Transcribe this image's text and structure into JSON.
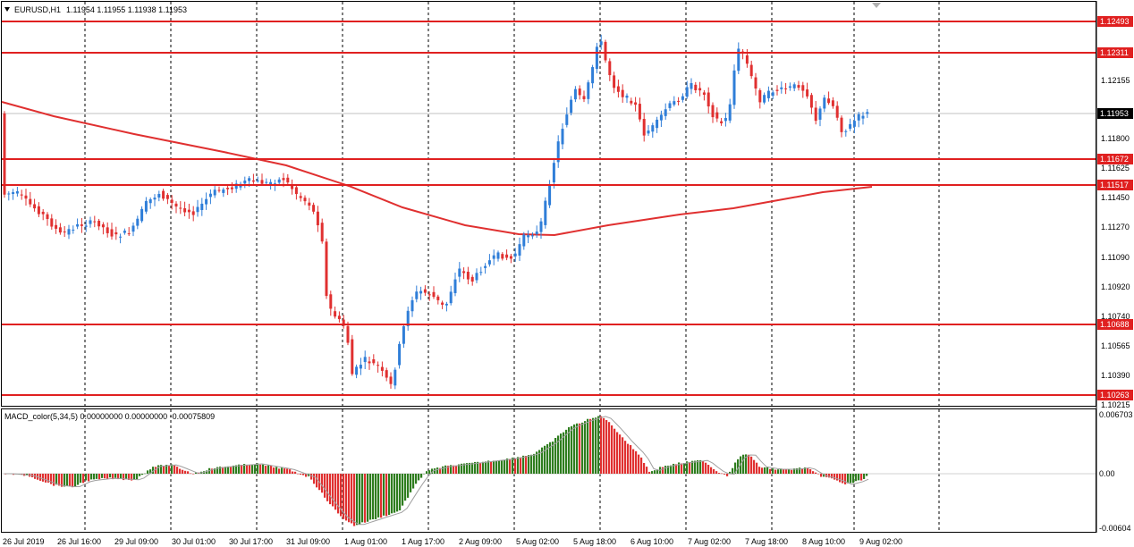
{
  "main_panel": {
    "symbol": "EURUSD,H1",
    "ohlc": "1.11954 1.11955 1.11938 1.11953",
    "price_ticks": [
      "1.12155",
      "1.11800",
      "1.11625",
      "1.11450",
      "1.11270",
      "1.11090",
      "1.10920",
      "1.10740",
      "1.10565",
      "1.10390",
      "1.10215"
    ],
    "current_price": "1.11953",
    "levels": [
      "1.12493",
      "1.12311",
      "1.11672",
      "1.11517",
      "1.10688",
      "1.10263"
    ]
  },
  "macd_panel": {
    "title": "MACD_color(5,34,5) 0.00000000 0.00000000 -0.00075809",
    "ticks": [
      "0.006703",
      "0.00",
      "-0.00604"
    ]
  },
  "time_axis": [
    "26 Jul 2019",
    "26 Jul 16:00",
    "29 Jul 09:00",
    "30 Jul 01:00",
    "30 Jul 17:00",
    "31 Jul 09:00",
    "1 Aug 01:00",
    "1 Aug 17:00",
    "2 Aug 09:00",
    "5 Aug 02:00",
    "5 Aug 18:00",
    "6 Aug 10:00",
    "7 Aug 02:00",
    "7 Aug 18:00",
    "8 Aug 10:00",
    "9 Aug 02:00"
  ],
  "colors": {
    "bull": "#2f7ed8",
    "bear": "#e03030",
    "level_line": "#e02020",
    "ma_line": "#e03030",
    "macd_up": "#2e7d1e",
    "macd_down": "#e03030",
    "signal_line": "#a0a0a0"
  },
  "icons": [
    "dropdown-triangle-icon",
    "scroll-shift-marker-icon"
  ]
}
